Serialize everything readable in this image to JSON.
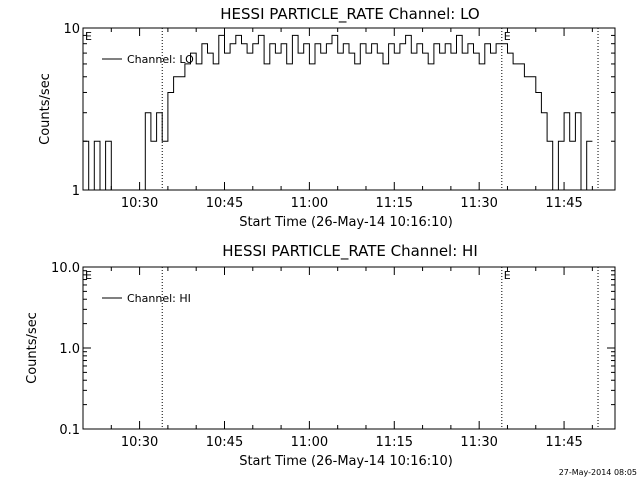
{
  "stamp": "27-May-2014 08:05",
  "chart_data": [
    {
      "type": "line",
      "title": "HESSI PARTICLE_RATE Channel: LO",
      "xlabel": "Start Time (26-May-14 10:16:10)",
      "ylabel": "Counts/sec",
      "scale_y": "log",
      "xlim": [
        "10:20",
        "11:54"
      ],
      "ylim": [
        1,
        10
      ],
      "x_ticks": [
        "10:30",
        "10:45",
        "11:00",
        "11:15",
        "11:30",
        "11:45"
      ],
      "y_ticks": [
        "1",
        "10"
      ],
      "grid": false,
      "legend": {
        "position": "top-left",
        "entries": [
          "Channel: LO"
        ]
      },
      "markers": [
        {
          "label": "E",
          "time": "10:20",
          "line": false
        },
        {
          "label": "",
          "time": "10:34",
          "line": true
        },
        {
          "label": "E",
          "time": "11:34",
          "line": true
        },
        {
          "label": "",
          "time": "11:51",
          "line": true
        }
      ],
      "series": [
        {
          "name": "Channel: LO",
          "x": [
            "10:20",
            "10:21",
            "10:22",
            "10:23",
            "10:24",
            "10:25",
            "10:26",
            "10:27",
            "10:28",
            "10:29",
            "10:30",
            "10:31",
            "10:32",
            "10:33",
            "10:34",
            "10:35",
            "10:36",
            "10:37",
            "10:38",
            "10:39",
            "10:40",
            "10:41",
            "10:42",
            "10:43",
            "10:44",
            "10:45",
            "10:46",
            "10:47",
            "10:48",
            "10:49",
            "10:50",
            "10:51",
            "10:52",
            "10:53",
            "10:54",
            "10:55",
            "10:56",
            "10:57",
            "10:58",
            "10:59",
            "11:00",
            "11:01",
            "11:02",
            "11:03",
            "11:04",
            "11:05",
            "11:06",
            "11:07",
            "11:08",
            "11:09",
            "11:10",
            "11:11",
            "11:12",
            "11:13",
            "11:14",
            "11:15",
            "11:16",
            "11:17",
            "11:18",
            "11:19",
            "11:20",
            "11:21",
            "11:22",
            "11:23",
            "11:24",
            "11:25",
            "11:26",
            "11:27",
            "11:28",
            "11:29",
            "11:30",
            "11:31",
            "11:32",
            "11:33",
            "11:34",
            "11:35",
            "11:36",
            "11:37",
            "11:38",
            "11:39",
            "11:40",
            "11:41",
            "11:42",
            "11:43",
            "11:44",
            "11:45",
            "11:46",
            "11:47",
            "11:48",
            "11:49",
            "11:50"
          ],
          "values": [
            2,
            1,
            2,
            1,
            2,
            1,
            1,
            1,
            1,
            1,
            1,
            3,
            2,
            3,
            2,
            4,
            5,
            5,
            6,
            7,
            6,
            8,
            7,
            6,
            9,
            7,
            8,
            9,
            8,
            7,
            8,
            9,
            6,
            8,
            7,
            8,
            6,
            9,
            7,
            8,
            6,
            8,
            7,
            8,
            9,
            7,
            8,
            7,
            6,
            8,
            7,
            8,
            7,
            6,
            8,
            7,
            8,
            9,
            7,
            8,
            7,
            6,
            8,
            7,
            8,
            7,
            9,
            7,
            8,
            7,
            6,
            8,
            7,
            8,
            8,
            7,
            6,
            6,
            5,
            5,
            4,
            3,
            2,
            1,
            2,
            3,
            2,
            3,
            1,
            2,
            2
          ]
        }
      ]
    },
    {
      "type": "line",
      "title": "HESSI PARTICLE_RATE Channel: HI",
      "xlabel": "Start Time (26-May-14 10:16:10)",
      "ylabel": "Counts/sec",
      "scale_y": "log",
      "xlim": [
        "10:20",
        "11:54"
      ],
      "ylim": [
        0.1,
        10
      ],
      "x_ticks": [
        "10:30",
        "10:45",
        "11:00",
        "11:15",
        "11:30",
        "11:45"
      ],
      "y_ticks": [
        "0.1",
        "1.0",
        "10.0"
      ],
      "grid": false,
      "legend": {
        "position": "top-left",
        "entries": [
          "Channel: HI"
        ]
      },
      "markers": [
        {
          "label": "E",
          "time": "10:20",
          "line": false
        },
        {
          "label": "",
          "time": "10:34",
          "line": true
        },
        {
          "label": "E",
          "time": "11:34",
          "line": true
        },
        {
          "label": "",
          "time": "11:51",
          "line": true
        }
      ],
      "series": [
        {
          "name": "Channel: HI",
          "x": [],
          "values": []
        }
      ]
    }
  ]
}
